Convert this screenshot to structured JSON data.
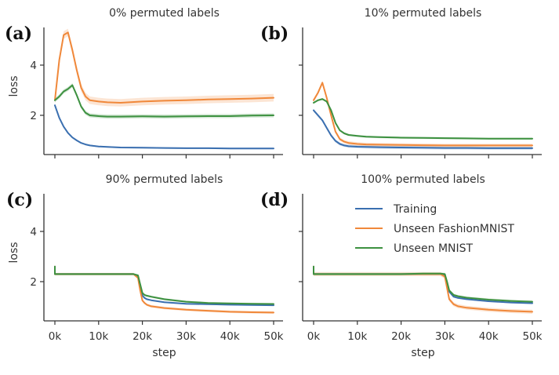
{
  "chart_data": [
    {
      "type": "line",
      "panel_label": "(a)",
      "title": "0% permuted labels",
      "xlabel": "",
      "ylabel": "loss",
      "xlim": [
        0,
        50000
      ],
      "ylim": [
        0.45,
        5.8
      ],
      "xticks": [
        0,
        10000,
        20000,
        30000,
        40000,
        50000
      ],
      "xtick_labels": [],
      "yticks": [
        2,
        4
      ],
      "ytick_labels": [
        "2",
        "4"
      ],
      "grid": false,
      "x": [
        0,
        1000,
        2000,
        3000,
        4000,
        5000,
        6000,
        7000,
        8000,
        10000,
        12000,
        15000,
        20000,
        25000,
        30000,
        35000,
        40000,
        45000,
        50000
      ],
      "series": [
        {
          "name": "Training",
          "color": "#3a6fb0",
          "band": 0.03,
          "values": [
            2.4,
            1.9,
            1.55,
            1.3,
            1.12,
            1.0,
            0.9,
            0.84,
            0.8,
            0.76,
            0.74,
            0.72,
            0.71,
            0.7,
            0.69,
            0.69,
            0.68,
            0.68,
            0.68
          ]
        },
        {
          "name": "Unseen FashionMNIST",
          "color": "#f0883a",
          "band": 0.15,
          "values": [
            2.6,
            4.2,
            5.2,
            5.3,
            4.6,
            3.8,
            3.1,
            2.75,
            2.6,
            2.55,
            2.52,
            2.5,
            2.55,
            2.58,
            2.6,
            2.63,
            2.65,
            2.67,
            2.7
          ]
        },
        {
          "name": "Unseen MNIST",
          "color": "#3d9140",
          "band": 0.08,
          "values": [
            2.6,
            2.75,
            2.95,
            3.05,
            3.2,
            2.8,
            2.35,
            2.1,
            2.0,
            1.97,
            1.95,
            1.95,
            1.96,
            1.95,
            1.96,
            1.97,
            1.97,
            1.99,
            2.0
          ]
        }
      ]
    },
    {
      "type": "line",
      "panel_label": "(b)",
      "title": "10% permuted labels",
      "xlabel": "",
      "ylabel": "",
      "xlim": [
        0,
        50000
      ],
      "ylim": [
        0.45,
        5.8
      ],
      "xticks": [
        0,
        10000,
        20000,
        30000,
        40000,
        50000
      ],
      "xtick_labels": [],
      "yticks": [
        2,
        4
      ],
      "ytick_labels": [],
      "grid": false,
      "x": [
        0,
        1000,
        2000,
        3000,
        4000,
        5000,
        6000,
        7000,
        8000,
        10000,
        12000,
        15000,
        20000,
        25000,
        30000,
        35000,
        40000,
        45000,
        50000
      ],
      "series": [
        {
          "name": "Training",
          "color": "#3a6fb0",
          "band": 0.06,
          "values": [
            2.2,
            2.0,
            1.8,
            1.5,
            1.2,
            0.98,
            0.86,
            0.8,
            0.77,
            0.75,
            0.74,
            0.73,
            0.72,
            0.71,
            0.7,
            0.7,
            0.69,
            0.69,
            0.69
          ]
        },
        {
          "name": "Unseen FashionMNIST",
          "color": "#f0883a",
          "band": 0.07,
          "values": [
            2.6,
            2.9,
            3.3,
            2.7,
            2.0,
            1.35,
            1.05,
            0.95,
            0.9,
            0.86,
            0.84,
            0.83,
            0.82,
            0.81,
            0.8,
            0.8,
            0.8,
            0.8,
            0.8
          ]
        },
        {
          "name": "Unseen MNIST",
          "color": "#3d9140",
          "band": 0.04,
          "values": [
            2.5,
            2.6,
            2.65,
            2.55,
            2.2,
            1.7,
            1.4,
            1.28,
            1.22,
            1.18,
            1.15,
            1.13,
            1.11,
            1.1,
            1.09,
            1.08,
            1.07,
            1.07,
            1.07
          ]
        }
      ]
    },
    {
      "type": "line",
      "panel_label": "(c)",
      "title": "90% permuted labels",
      "xlabel": "step",
      "ylabel": "loss",
      "xlim": [
        0,
        50000
      ],
      "ylim": [
        0.45,
        5.8
      ],
      "xticks": [
        0,
        10000,
        20000,
        30000,
        40000,
        50000
      ],
      "xtick_labels": [
        "0k",
        "10k",
        "20k",
        "30k",
        "40k",
        "50k"
      ],
      "yticks": [
        2,
        4
      ],
      "ytick_labels": [
        "2",
        "4"
      ],
      "grid": false,
      "x": [
        0,
        1,
        200,
        5000,
        10000,
        15000,
        18000,
        19000,
        19500,
        20000,
        20500,
        21000,
        22000,
        25000,
        30000,
        35000,
        40000,
        45000,
        50000
      ],
      "series": [
        {
          "name": "Training",
          "color": "#3a6fb0",
          "band": 0.03,
          "values": [
            2.6,
            2.3,
            2.3,
            2.3,
            2.3,
            2.3,
            2.3,
            2.2,
            1.8,
            1.45,
            1.35,
            1.3,
            1.26,
            1.18,
            1.12,
            1.1,
            1.08,
            1.07,
            1.06
          ]
        },
        {
          "name": "Unseen FashionMNIST",
          "color": "#f0883a",
          "band": 0.05,
          "values": [
            2.6,
            2.3,
            2.3,
            2.3,
            2.3,
            2.3,
            2.3,
            2.15,
            1.65,
            1.25,
            1.15,
            1.08,
            1.02,
            0.95,
            0.88,
            0.84,
            0.8,
            0.78,
            0.77
          ]
        },
        {
          "name": "Unseen MNIST",
          "color": "#3d9140",
          "band": 0.04,
          "values": [
            2.6,
            2.3,
            2.3,
            2.3,
            2.3,
            2.3,
            2.3,
            2.25,
            1.9,
            1.55,
            1.47,
            1.44,
            1.4,
            1.3,
            1.2,
            1.15,
            1.13,
            1.12,
            1.11
          ]
        }
      ]
    },
    {
      "type": "line",
      "panel_label": "(d)",
      "title": "100% permuted labels",
      "xlabel": "step",
      "ylabel": "",
      "xlim": [
        0,
        50000
      ],
      "ylim": [
        0.45,
        5.8
      ],
      "xticks": [
        0,
        10000,
        20000,
        30000,
        40000,
        50000
      ],
      "xtick_labels": [
        "0k",
        "10k",
        "20k",
        "30k",
        "40k",
        "50k"
      ],
      "yticks": [
        2,
        4
      ],
      "ytick_labels": [],
      "grid": false,
      "x": [
        0,
        1,
        200,
        5000,
        10000,
        15000,
        20000,
        25000,
        29000,
        30000,
        30500,
        31000,
        32000,
        33000,
        35000,
        40000,
        45000,
        50000
      ],
      "series": [
        {
          "name": "Training",
          "color": "#3a6fb0",
          "band": 0.03,
          "values": [
            2.6,
            2.3,
            2.3,
            2.3,
            2.3,
            2.3,
            2.3,
            2.3,
            2.3,
            2.25,
            1.95,
            1.6,
            1.4,
            1.35,
            1.3,
            1.22,
            1.17,
            1.14
          ]
        },
        {
          "name": "Unseen FashionMNIST",
          "color": "#f0883a",
          "band": 0.08,
          "values": [
            2.6,
            2.3,
            2.3,
            2.3,
            2.3,
            2.3,
            2.3,
            2.3,
            2.3,
            2.2,
            1.75,
            1.3,
            1.1,
            1.02,
            0.96,
            0.88,
            0.83,
            0.8
          ]
        },
        {
          "name": "Unseen MNIST",
          "color": "#3d9140",
          "band": 0.05,
          "values": [
            2.6,
            2.3,
            2.3,
            2.3,
            2.3,
            2.3,
            2.3,
            2.32,
            2.32,
            2.3,
            2.0,
            1.65,
            1.47,
            1.42,
            1.36,
            1.28,
            1.23,
            1.2
          ]
        }
      ]
    }
  ],
  "legend": {
    "placement": "upper-right of panel (d)",
    "entries": [
      {
        "label": "Training",
        "color": "#3a6fb0"
      },
      {
        "label": "Unseen FashionMNIST",
        "color": "#f0883a"
      },
      {
        "label": "Unseen MNIST",
        "color": "#3d9140"
      }
    ]
  }
}
